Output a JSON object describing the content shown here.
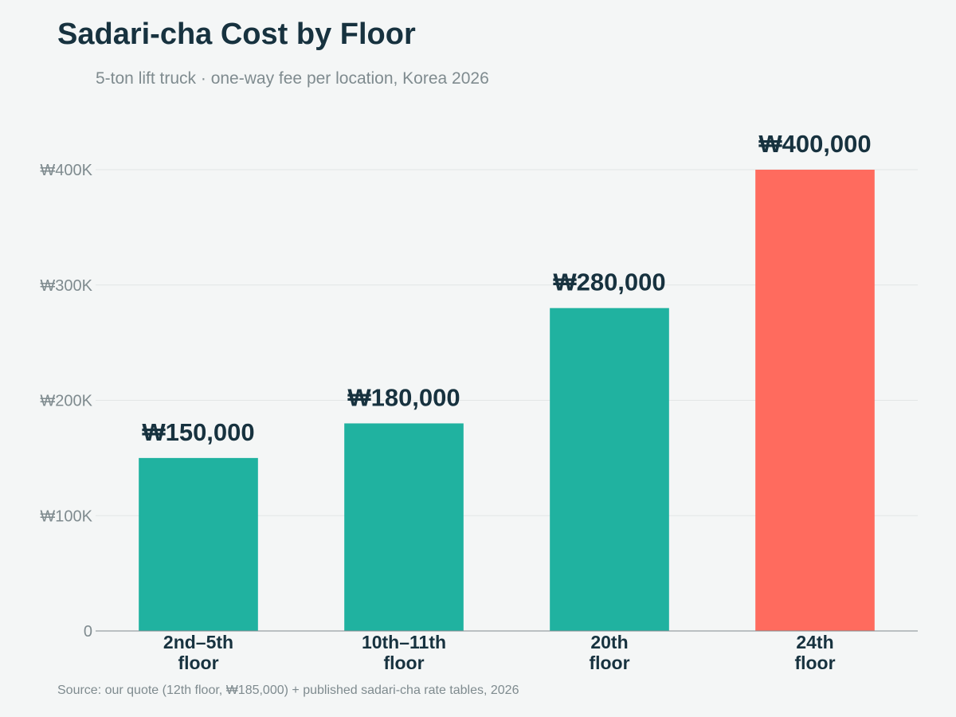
{
  "chart_data": {
    "type": "bar",
    "title": "Sadari-cha Cost by Floor",
    "subtitle": "5-ton lift truck · one-way fee per location, Korea 2026",
    "categories": [
      [
        "2nd–5th",
        "floor"
      ],
      [
        "10th–11th",
        "floor"
      ],
      [
        "20th",
        "floor"
      ],
      [
        "24th",
        "floor"
      ]
    ],
    "values": [
      150000,
      180000,
      280000,
      400000
    ],
    "value_labels": [
      "₩150,000",
      "₩180,000",
      "₩280,000",
      "₩400,000"
    ],
    "bar_colors": [
      "#20b2a0",
      "#20b2a0",
      "#20b2a0",
      "#ff6b5e"
    ],
    "ylim": [
      0,
      400000
    ],
    "yticks": [
      0,
      100000,
      200000,
      300000,
      400000
    ],
    "ytick_labels": [
      "0",
      "₩100K",
      "₩200K",
      "₩300K",
      "₩400K"
    ],
    "xlabel": "",
    "ylabel": "",
    "grid": true,
    "source": "Source: our quote (12th floor, ₩185,000) + published sadari-cha rate tables, 2026"
  },
  "colors": {
    "background": "#f4f6f6",
    "title": "#17323f",
    "muted": "#7f8b8f",
    "grid": "#e2e6e6",
    "axis": "#7f8b8f"
  }
}
